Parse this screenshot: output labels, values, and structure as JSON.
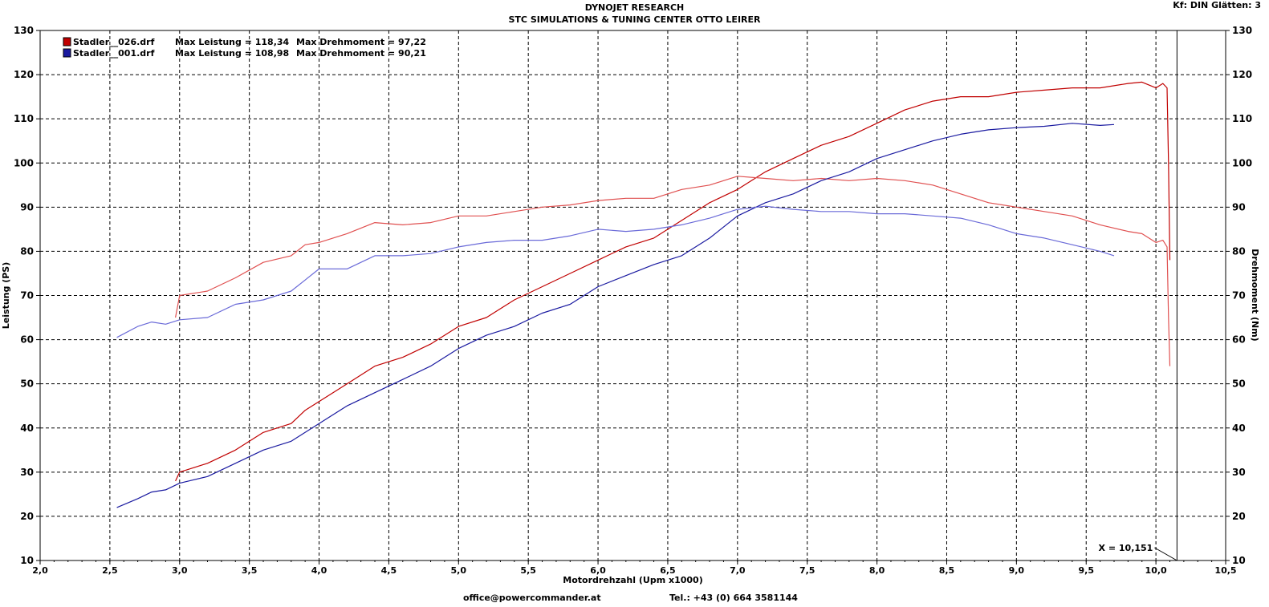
{
  "header": {
    "title": "DYNOJET RESEARCH",
    "subtitle": "STC SIMULATIONS & TUNING CENTER OTTO LEIRER",
    "corner": "Kf: DIN  Glätten: 3"
  },
  "footer": {
    "email": "office@powercommander.at",
    "tel": "Tel.: +43 (0) 664 3581144"
  },
  "colors": {
    "red": "#c00000",
    "blue": "#1a1aa0"
  },
  "chart_data": {
    "type": "line",
    "xlabel": "Motordrehzahl (Upm x1000)",
    "ylabel": "Leistung (PS)",
    "y2label": "Drehmoment (Nm)",
    "xlim": [
      2.0,
      10.5
    ],
    "ylim": [
      10,
      130
    ],
    "y2lim": [
      10,
      130
    ],
    "xticks": [
      "2,0",
      "2,5",
      "3,0",
      "3,5",
      "4,0",
      "4,5",
      "5,0",
      "5,5",
      "6,0",
      "6,5",
      "7,0",
      "7,5",
      "8,0",
      "8,5",
      "9,0",
      "9,5",
      "10,0",
      "10,5"
    ],
    "yticks": [
      "10",
      "20",
      "30",
      "40",
      "50",
      "60",
      "70",
      "80",
      "90",
      "100",
      "110",
      "120",
      "130"
    ],
    "grid": true,
    "legend_position": "top-left",
    "legend": [
      {
        "file": "Stadler__026.drf",
        "leistung": "Max Leistung = 118,34",
        "drehmoment": "Max Drehmoment = 97,22",
        "color": "#c00000"
      },
      {
        "file": "Stadler__001.drf",
        "leistung": "Max Leistung = 108,98",
        "drehmoment": "Max Drehmoment = 90,21",
        "color": "#1a1aa0"
      }
    ],
    "cursor": {
      "x": 10.151,
      "label": "X = 10,151"
    },
    "series": [
      {
        "name": "Stadler__026.drf Leistung",
        "color": "#c00000",
        "x": [
          2.97,
          3.0,
          3.2,
          3.4,
          3.6,
          3.8,
          3.9,
          4.0,
          4.2,
          4.4,
          4.6,
          4.8,
          5.0,
          5.2,
          5.4,
          5.6,
          5.8,
          6.0,
          6.2,
          6.4,
          6.6,
          6.8,
          7.0,
          7.2,
          7.4,
          7.6,
          7.8,
          8.0,
          8.2,
          8.4,
          8.6,
          8.8,
          9.0,
          9.2,
          9.4,
          9.6,
          9.8,
          9.9,
          10.0,
          10.05,
          10.08,
          10.09,
          10.1
        ],
        "y": [
          28,
          30,
          32,
          35,
          39,
          41,
          44,
          46,
          50,
          54,
          56,
          59,
          63,
          65,
          69,
          72,
          75,
          78,
          81,
          83,
          87,
          91,
          94,
          98,
          101,
          104,
          106,
          109,
          112,
          114,
          115,
          115,
          116,
          116.5,
          117,
          117,
          118,
          118.3,
          117,
          118,
          117,
          100,
          78
        ]
      },
      {
        "name": "Stadler__026.drf Drehmoment",
        "color": "#e05050",
        "x": [
          2.97,
          3.0,
          3.2,
          3.4,
          3.6,
          3.8,
          3.9,
          4.0,
          4.2,
          4.4,
          4.6,
          4.8,
          5.0,
          5.2,
          5.4,
          5.6,
          5.8,
          6.0,
          6.2,
          6.4,
          6.6,
          6.8,
          7.0,
          7.2,
          7.4,
          7.6,
          7.8,
          8.0,
          8.2,
          8.4,
          8.6,
          8.8,
          9.0,
          9.2,
          9.4,
          9.6,
          9.8,
          9.9,
          10.0,
          10.05,
          10.08,
          10.09,
          10.1
        ],
        "y": [
          65,
          70,
          71,
          74,
          77.5,
          79,
          81.5,
          82,
          84,
          86.5,
          86,
          86.5,
          88,
          88,
          89,
          90,
          90.5,
          91.5,
          92,
          92,
          94,
          95,
          97,
          96.5,
          96,
          96.5,
          96,
          96.5,
          96,
          95,
          93,
          91,
          90,
          89,
          88,
          86,
          84.5,
          84,
          82,
          82.5,
          81,
          65,
          54
        ]
      },
      {
        "name": "Stadler__001.drf Leistung",
        "color": "#1a1aa0",
        "x": [
          2.55,
          2.7,
          2.8,
          2.9,
          3.0,
          3.2,
          3.4,
          3.6,
          3.8,
          4.0,
          4.2,
          4.4,
          4.6,
          4.8,
          5.0,
          5.2,
          5.4,
          5.6,
          5.8,
          6.0,
          6.2,
          6.4,
          6.6,
          6.8,
          7.0,
          7.2,
          7.4,
          7.6,
          7.8,
          8.0,
          8.2,
          8.4,
          8.6,
          8.8,
          9.0,
          9.2,
          9.4,
          9.6,
          9.7
        ],
        "y": [
          22,
          24,
          25.5,
          26,
          27.5,
          29,
          32,
          35,
          37,
          41,
          45,
          48,
          51,
          54,
          58,
          61,
          63,
          66,
          68,
          72,
          74.5,
          77,
          79,
          83,
          88,
          91,
          93,
          96,
          98,
          101,
          103,
          105,
          106.5,
          107.5,
          108,
          108.3,
          108.98,
          108.5,
          108.7
        ]
      },
      {
        "name": "Stadler__001.drf Drehmoment",
        "color": "#6a6ad8",
        "x": [
          2.55,
          2.7,
          2.8,
          2.9,
          3.0,
          3.2,
          3.4,
          3.6,
          3.8,
          4.0,
          4.2,
          4.4,
          4.6,
          4.8,
          5.0,
          5.2,
          5.4,
          5.6,
          5.8,
          6.0,
          6.2,
          6.4,
          6.6,
          6.8,
          7.0,
          7.2,
          7.4,
          7.6,
          7.8,
          8.0,
          8.2,
          8.4,
          8.6,
          8.8,
          9.0,
          9.2,
          9.4,
          9.6,
          9.7
        ],
        "y": [
          60.5,
          63,
          64,
          63.5,
          64.5,
          65,
          68,
          69,
          71,
          76,
          76,
          79,
          79,
          79.5,
          81,
          82,
          82.5,
          82.5,
          83.5,
          85,
          84.5,
          85,
          86,
          87.5,
          89.5,
          90.2,
          89.5,
          89,
          89,
          88.5,
          88.5,
          88,
          87.5,
          86,
          84,
          83,
          81.5,
          80,
          79
        ]
      }
    ]
  }
}
